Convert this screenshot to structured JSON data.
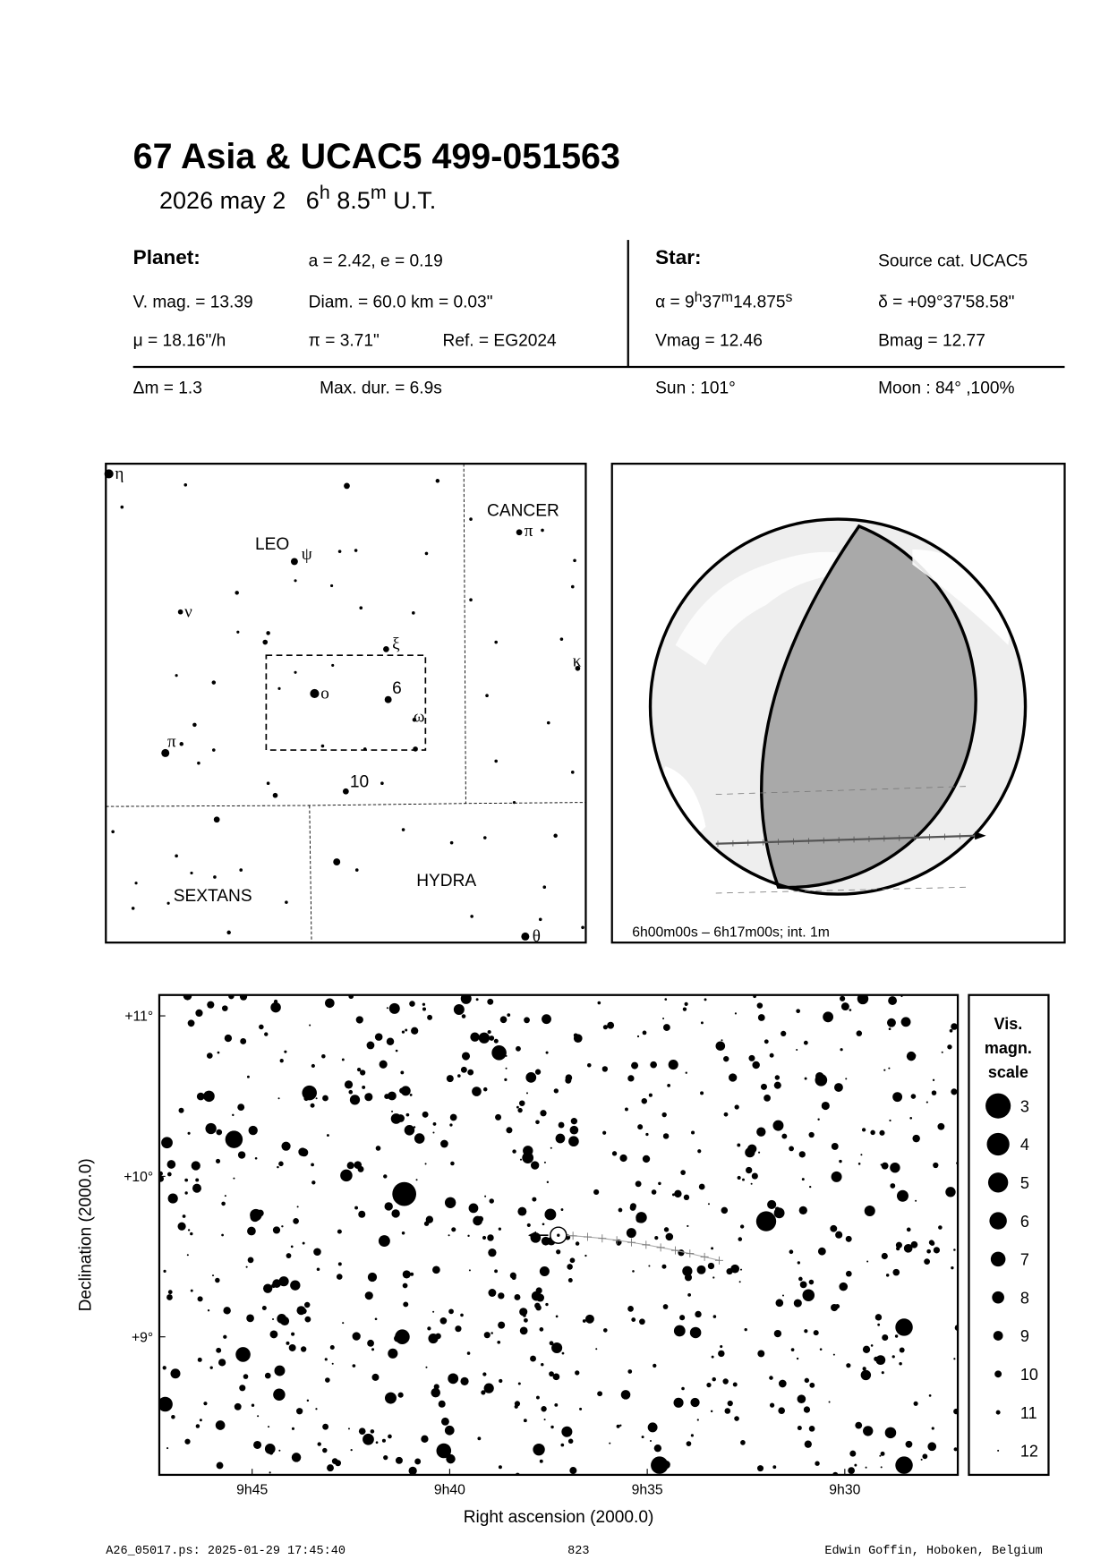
{
  "header": {
    "title": "67 Asia  &  UCAC5 499-051563",
    "date": "2026 may  2",
    "time_h": "6",
    "time_h_unit": "h",
    "time_m": " 8.5",
    "time_m_unit": "m",
    "time_suffix": " U.T."
  },
  "planet": {
    "heading": "Planet:",
    "orbit": "a = 2.42, e = 0.19",
    "vmag": "V. mag. = 13.39",
    "diam": "Diam. = 60.0 km = 0.03\"",
    "mu": "μ =  18.16\"/h",
    "parallax": "π =  3.71\"",
    "ref": "Ref. = EG2024"
  },
  "star": {
    "heading": "Star:",
    "source": "Source cat.  UCAC5",
    "alpha_prefix": "α =  9",
    "alpha_h": "h",
    "alpha_mid": "37",
    "alpha_m": "m",
    "alpha_s_val": "14.875",
    "alpha_s": "s",
    "delta": "δ = +09°37'58.58\"",
    "vmag": "Vmag = 12.46",
    "bmag": "Bmag = 12.77"
  },
  "event": {
    "dmag": "Δm = 1.3",
    "maxdur": "Max. dur. = 6.9s",
    "sun": "Sun : 101°",
    "moon": "Moon :  84° ,100%"
  },
  "finder": {
    "constellations": [
      "LEO",
      "CANCER",
      "SEXTANS",
      "HYDRA"
    ],
    "star_labels": [
      "η",
      "ψ",
      "ν",
      "ξ",
      "ο",
      "6",
      "ω",
      "π",
      "10",
      "π",
      "κ",
      "θ"
    ]
  },
  "globe": {
    "caption": "6h00m00s –  6h17m00s; int.  1m",
    "day_color": "#eeeeee",
    "night_color": "#a9a9a9"
  },
  "chart_data": {
    "type": "scatter",
    "xlabel": "Right ascension (2000.0)",
    "ylabel": "Declination (2000.0)",
    "x_ticks": [
      "9h45",
      "9h40",
      "9h35",
      "9h30"
    ],
    "y_ticks": [
      "+11°",
      "+10°",
      "+9°"
    ],
    "x_range_ra_minutes_of_9h": [
      47.35,
      27.14
    ],
    "y_range_deg": [
      8.14,
      11.13
    ],
    "x_axis_reversed": true,
    "target": {
      "ra": "9h37m14.875s",
      "dec": 9.633
    },
    "bright_stars": [
      {
        "ra_min": 41.15,
        "dec": 9.89,
        "mag": 3.5
      },
      {
        "ra_min": 31.99,
        "dec": 9.72,
        "mag": 5
      },
      {
        "ra_min": 28.5,
        "dec": 9.06,
        "mag": 6
      },
      {
        "ra_min": 28.5,
        "dec": 8.2,
        "mag": 6
      },
      {
        "ra_min": 34.69,
        "dec": 8.2,
        "mag": 6
      },
      {
        "ra_min": 45.46,
        "dec": 10.23,
        "mag": 6
      },
      {
        "ra_min": 47.2,
        "dec": 8.58,
        "mag": 7
      },
      {
        "ra_min": 38.75,
        "dec": 10.77,
        "mag": 7
      },
      {
        "ra_min": 43.55,
        "dec": 10.52,
        "mag": 7
      },
      {
        "ra_min": 41.2,
        "dec": 9.0,
        "mag": 7
      },
      {
        "ra_min": 45.23,
        "dec": 8.89,
        "mag": 7
      },
      {
        "ra_min": 40.15,
        "dec": 8.29,
        "mag": 7
      },
      {
        "ra_min": 30.6,
        "dec": 10.6,
        "mag": 8
      }
    ],
    "legend": {
      "title_lines": [
        "Vis.",
        "magn.",
        "scale"
      ],
      "magnitudes": [
        "3",
        "4",
        "5",
        "6",
        "7",
        "8",
        "9",
        "10",
        "11",
        "12"
      ]
    }
  },
  "footer": {
    "file": "A26_05017.ps: 2025-01-29 17:45:40",
    "page": "823",
    "author": "Edwin Goffin, Hoboken, Belgium"
  }
}
